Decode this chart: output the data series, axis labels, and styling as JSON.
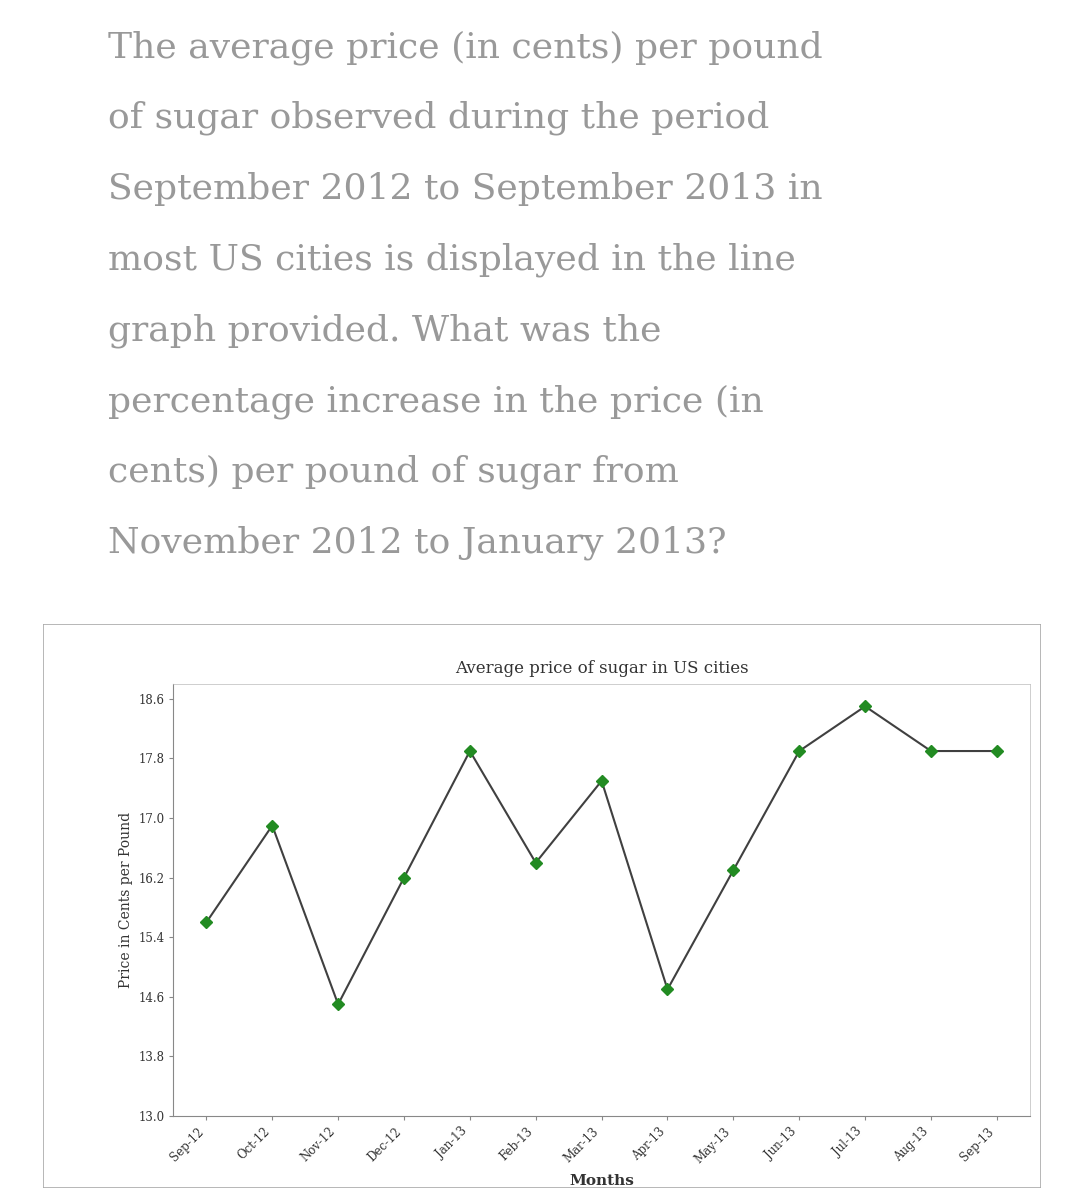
{
  "title": "Average price of sugar in US cities",
  "xlabel": "Months",
  "ylabel": "Price in Cents per Pound",
  "question_text": "The average price (in cents) per pound\nof sugar observed during the period\nSeptember 2012 to September 2013 in\nmost US cities is displayed in the line\ngraph provided. What was the\npercentage increase in the price (in\ncents) per pound of sugar from\nNovember 2012 to January 2013?",
  "months": [
    "Sep-12",
    "Oct-12",
    "Nov-12",
    "Dec-12",
    "Jan-13",
    "Feb-13",
    "Mar-13",
    "Apr-13",
    "May-13",
    "Jun-13",
    "Jul-13",
    "Aug-13",
    "Sep-13"
  ],
  "values": [
    15.6,
    16.9,
    14.5,
    16.2,
    17.9,
    16.4,
    17.5,
    14.7,
    16.3,
    17.9,
    18.5,
    17.9,
    17.9
  ],
  "yticks": [
    13.0,
    13.8,
    14.6,
    15.4,
    16.2,
    17.0,
    17.8,
    18.6
  ],
  "ylim": [
    13.0,
    18.8
  ],
  "line_color": "#404040",
  "marker_color": "#228B22",
  "marker_style": "D",
  "marker_size": 6,
  "line_width": 1.5,
  "bg_color": "#ffffff",
  "text_color": "#999999",
  "question_fontsize": 26,
  "title_fontsize": 12,
  "axis_label_fontsize": 10,
  "tick_fontsize": 8.5
}
